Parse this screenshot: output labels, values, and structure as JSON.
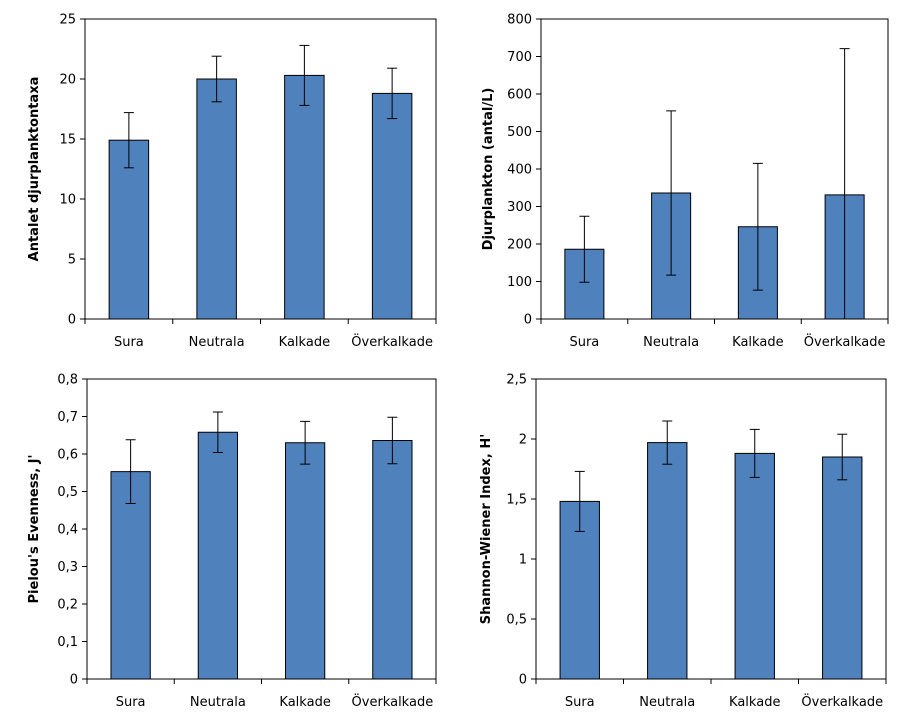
{
  "colors": {
    "bar_fill": "#4f81bd",
    "bar_stroke": "#000000",
    "axis": "#000000",
    "frame": "#000000"
  },
  "chart_data": [
    {
      "type": "bar",
      "categories": [
        "Sura",
        "Neutrala",
        "Kalkade",
        "Överkalkade"
      ],
      "values": [
        14.9,
        20.0,
        20.3,
        18.8
      ],
      "errors": [
        2.3,
        1.9,
        2.5,
        2.1
      ],
      "xlabel": "",
      "ylabel": "Antalet djurplanktontaxa",
      "ylim": [
        0,
        25
      ],
      "yticks": [
        0,
        5,
        10,
        15,
        20,
        25
      ],
      "ytick_labels": [
        "0",
        "5",
        "10",
        "15",
        "20",
        "25"
      ]
    },
    {
      "type": "bar",
      "categories": [
        "Sura",
        "Neutrala",
        "Kalkade",
        "Överkalkade"
      ],
      "values": [
        186,
        336,
        246,
        331
      ],
      "errors": [
        88,
        219,
        169,
        390
      ],
      "xlabel": "",
      "ylabel": "Djurplankton (antal/L)",
      "ylim": [
        0,
        800
      ],
      "yticks": [
        0,
        100,
        200,
        300,
        400,
        500,
        600,
        700,
        800
      ],
      "ytick_labels": [
        "0",
        "100",
        "200",
        "300",
        "400",
        "500",
        "600",
        "700",
        "800"
      ]
    },
    {
      "type": "bar",
      "categories": [
        "Sura",
        "Neutrala",
        "Kalkade",
        "Överkalkade"
      ],
      "values": [
        0.553,
        0.658,
        0.63,
        0.636
      ],
      "errors": [
        0.085,
        0.054,
        0.057,
        0.062
      ],
      "xlabel": "",
      "ylabel": "Pielou's  Evenness, J'",
      "ylim": [
        0,
        0.8
      ],
      "yticks": [
        0,
        0.1,
        0.2,
        0.3,
        0.4,
        0.5,
        0.6,
        0.7,
        0.8
      ],
      "ytick_labels": [
        "0",
        "0,1",
        "0,2",
        "0,3",
        "0,4",
        "0,5",
        "0,6",
        "0,7",
        "0,8"
      ]
    },
    {
      "type": "bar",
      "categories": [
        "Sura",
        "Neutrala",
        "Kalkade",
        "Överkalkade"
      ],
      "values": [
        1.48,
        1.97,
        1.88,
        1.85
      ],
      "errors": [
        0.25,
        0.18,
        0.2,
        0.19
      ],
      "xlabel": "",
      "ylabel": "Shannon-Wiener Index, H'",
      "ylim": [
        0,
        2.5
      ],
      "yticks": [
        0,
        0.5,
        1,
        1.5,
        2,
        2.5
      ],
      "ytick_labels": [
        "0",
        "0,5",
        "1",
        "1,5",
        "2",
        "2,5"
      ]
    }
  ]
}
